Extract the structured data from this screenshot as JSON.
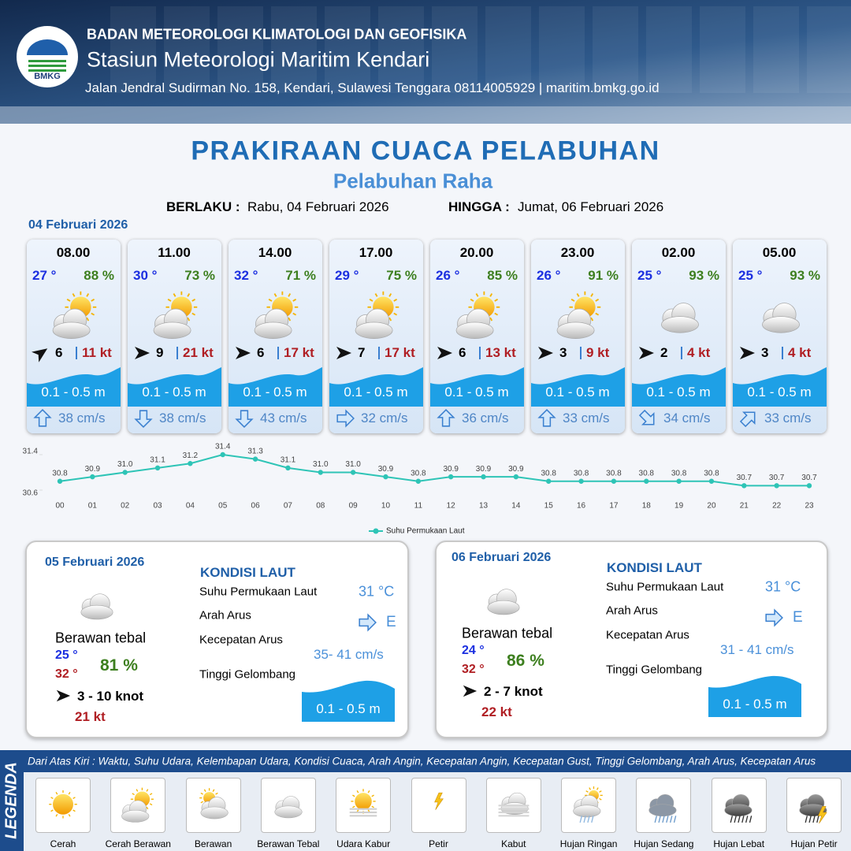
{
  "header": {
    "agency": "BADAN METEOROLOGI KLIMATOLOGI DAN GEOFISIKA",
    "logo_text": "BMKG",
    "station": "Stasiun Meteorologi Maritim Kendari",
    "address": "Jalan Jendral Sudirman No. 158, Kendari, Sulawesi Tenggara  08114005929 | maritim.bmkg.go.id"
  },
  "title": "PRAKIRAAN CUACA PELABUHAN",
  "subtitle": "Pelabuhan Raha",
  "validity": {
    "from_label": "BERLAKU :",
    "from": "Rabu, 04 Februari 2026",
    "to_label": "HINGGA :",
    "to": "Jumat, 06 Februari 2026"
  },
  "hourly": {
    "date": "04 Februari 2026",
    "items": [
      {
        "time": "08.00",
        "temp": "27 °",
        "humidity": "88 %",
        "wind": "6",
        "gust": "11 kt",
        "wave": "0.1 - 0.5 m",
        "current": "38 cm/s"
      },
      {
        "time": "11.00",
        "temp": "30 °",
        "humidity": "73 %",
        "wind": "9",
        "gust": "21 kt",
        "wave": "0.1 - 0.5 m",
        "current": "38 cm/s"
      },
      {
        "time": "14.00",
        "temp": "32 °",
        "humidity": "71 %",
        "wind": "6",
        "gust": "17 kt",
        "wave": "0.1 - 0.5 m",
        "current": "43 cm/s"
      },
      {
        "time": "17.00",
        "temp": "29 °",
        "humidity": "75 %",
        "wind": "7",
        "gust": "17 kt",
        "wave": "0.1 - 0.5 m",
        "current": "32 cm/s"
      },
      {
        "time": "20.00",
        "temp": "26 °",
        "humidity": "85 %",
        "wind": "6",
        "gust": "13 kt",
        "wave": "0.1 - 0.5 m",
        "current": "36 cm/s"
      },
      {
        "time": "23.00",
        "temp": "26 °",
        "humidity": "91 %",
        "wind": "3",
        "gust": "9 kt",
        "wave": "0.1 - 0.5 m",
        "current": "33 cm/s"
      },
      {
        "time": "02.00",
        "temp": "25 °",
        "humidity": "93 %",
        "wind": "2",
        "gust": "4 kt",
        "wave": "0.1 - 0.5 m",
        "current": "34 cm/s"
      },
      {
        "time": "05.00",
        "temp": "25 °",
        "humidity": "93 %",
        "wind": "3",
        "gust": "4 kt",
        "wave": "0.1 - 0.5 m",
        "current": "33 cm/s"
      }
    ]
  },
  "chart_data": {
    "type": "line",
    "categories": [
      "00",
      "01",
      "02",
      "03",
      "04",
      "05",
      "06",
      "07",
      "08",
      "09",
      "10",
      "11",
      "12",
      "13",
      "14",
      "15",
      "16",
      "17",
      "18",
      "19",
      "20",
      "21",
      "22",
      "23"
    ],
    "series": [
      {
        "name": "Suhu Permukaan Laut",
        "color": "#2ec4b6",
        "values": [
          30.8,
          30.9,
          31.0,
          31.1,
          31.2,
          31.4,
          31.3,
          31.1,
          31.0,
          31.0,
          30.9,
          30.8,
          30.9,
          30.9,
          30.9,
          30.8,
          30.8,
          30.8,
          30.8,
          30.8,
          30.8,
          30.7,
          30.7,
          30.7
        ],
        "value_labels": [
          "30.8",
          "30.9",
          "31.0",
          "31.1",
          "31.2",
          "31.4",
          "31.3",
          "31.1",
          "31.0",
          "31.0",
          "30.9",
          "30.8",
          "30.9",
          "30.9",
          "30.9",
          "30.8",
          "30.8",
          "30.8",
          "30.8",
          "30.8",
          "30.8",
          "30.7",
          "30.7",
          "30.7"
        ]
      }
    ],
    "ylim": [
      30.6,
      31.4
    ],
    "yticks": [
      30.6,
      31.4
    ],
    "grid": false
  },
  "daily": [
    {
      "date": "05 Februari 2026",
      "condition": "Berawan tebal",
      "temp_min": "25 °",
      "temp_max": "32 °",
      "humidity": "81 %",
      "wind": "3  - 10 knot",
      "gust": "21 kt",
      "sea_title": "KONDISI LAUT",
      "sst_label": "Suhu Permukaan Laut",
      "sst": "31 °C",
      "current_dir_label": "Arah Arus",
      "current_dir": "E",
      "current_speed_label": "Kecepatan Arus",
      "current_speed": "35- 41 cm/s",
      "wave_label": "Tinggi Gelombang",
      "wave": "0.1 - 0.5 m"
    },
    {
      "date": "06 Februari 2026",
      "condition": "Berawan tebal",
      "temp_min": "24 °",
      "temp_max": "32 °",
      "humidity": "86 %",
      "wind": "2  - 7 knot",
      "gust": "22 kt",
      "sea_title": "KONDISI LAUT",
      "sst_label": "Suhu Permukaan Laut",
      "sst": "31 °C",
      "current_dir_label": "Arah Arus",
      "current_dir": "E",
      "current_speed_label": "Kecepatan Arus",
      "current_speed": "31 - 41 cm/s",
      "wave_label": "Tinggi Gelombang",
      "wave": "0.1 - 0.5 m"
    }
  ],
  "legend": {
    "title": "LEGENDA",
    "description": "Dari Atas Kiri : Waktu, Suhu Udara, Kelembapan Udara, Kondisi Cuaca, Arah Angin, Kecepatan Angin, Kecepatan Gust, Tinggi Gelombang, Arah Arus, Kecepatan Arus",
    "items": [
      "Cerah",
      "Cerah Berawan",
      "Berawan",
      "Berawan Tebal",
      "Udara Kabur",
      "Petir",
      "Kabut",
      "Hujan Ringan",
      "Hujan Sedang",
      "Hujan Lebat",
      "Hujan Petir"
    ]
  }
}
